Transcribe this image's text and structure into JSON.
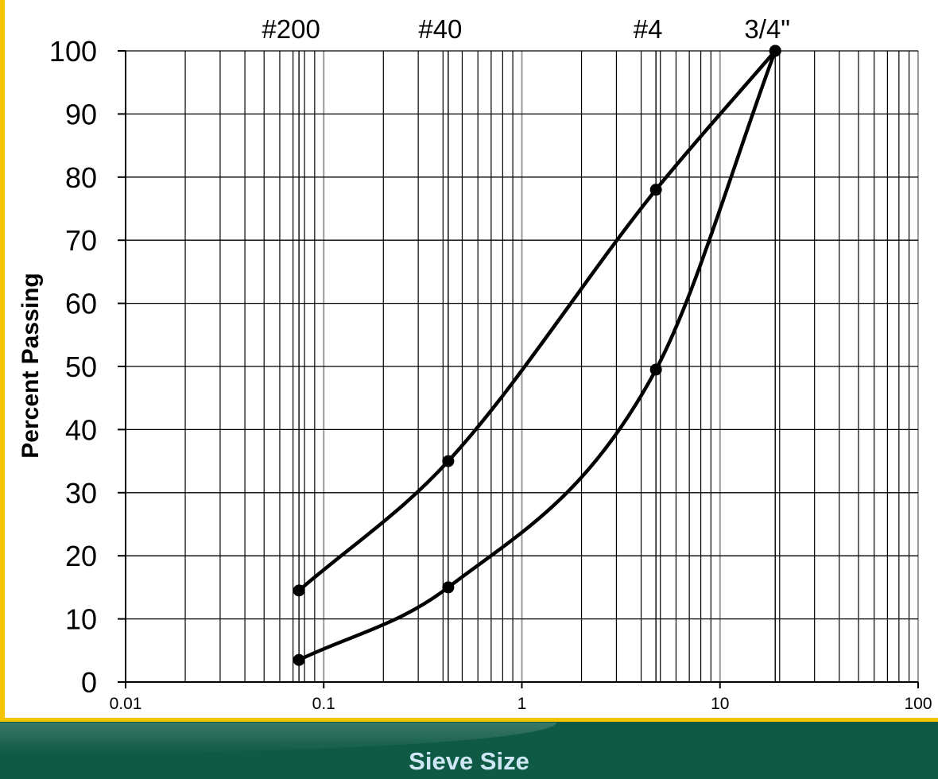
{
  "chart_data": {
    "type": "line",
    "title": "",
    "xlabel": "Sieve Size",
    "ylabel": "Percent Passing",
    "xscale": "log",
    "xlim": [
      0.01,
      100
    ],
    "ylim": [
      0,
      100
    ],
    "grid": true,
    "x_tick_labels": [
      "0.01",
      "0.1",
      "1",
      "10",
      "100"
    ],
    "y_tick_labels": [
      "0",
      "10",
      "20",
      "30",
      "40",
      "50",
      "60",
      "70",
      "80",
      "90",
      "100"
    ],
    "sieve_labels": [
      {
        "label": "#200",
        "x": 0.075
      },
      {
        "label": "#40",
        "x": 0.425
      },
      {
        "label": "#4",
        "x": 4.75
      },
      {
        "label": "3/4\"",
        "x": 19
      }
    ],
    "series": [
      {
        "x": [
          0.075,
          0.425,
          4.75,
          19
        ],
        "values": [
          14.5,
          35,
          78,
          100
        ]
      },
      {
        "x": [
          0.075,
          0.425,
          4.75,
          19
        ],
        "values": [
          3.5,
          15,
          49.5,
          100
        ]
      }
    ],
    "colors": {
      "axis": "#000000",
      "minor_grid": "#000000",
      "major_grid": "#9a9a9a",
      "line": "#000000"
    }
  }
}
